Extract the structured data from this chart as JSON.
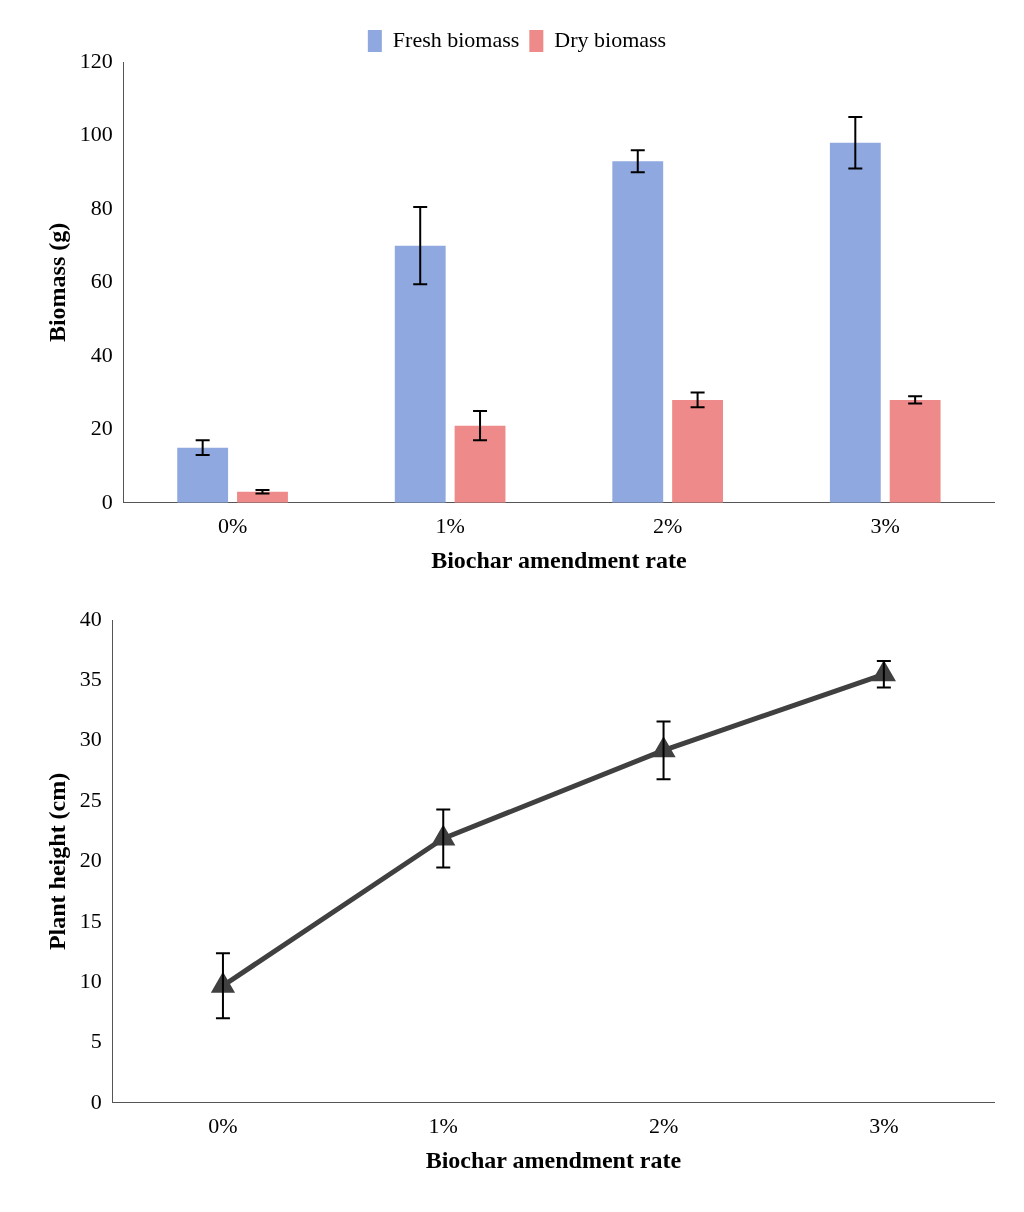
{
  "chart_data": [
    {
      "type": "bar",
      "categories": [
        "0%",
        "1%",
        "2%",
        "3%"
      ],
      "xlabel": "Biochar amendment rate",
      "ylabel": "Biomass (g)",
      "ylim": [
        0,
        120
      ],
      "yticks": [
        0,
        20,
        40,
        60,
        80,
        100,
        120
      ],
      "legend": "top",
      "series": [
        {
          "name": "Fresh biomass",
          "color": "#8fa8e0",
          "values": [
            15,
            70,
            93,
            98
          ],
          "errors": [
            2,
            10.5,
            3,
            7
          ]
        },
        {
          "name": "Dry biomass",
          "color": "#ee8a8a",
          "values": [
            3,
            21,
            28,
            28
          ],
          "errors": [
            0.5,
            4,
            2,
            1
          ]
        }
      ]
    },
    {
      "type": "line",
      "categories": [
        "0%",
        "1%",
        "2%",
        "3%"
      ],
      "xlabel": "Biochar amendment rate",
      "ylabel": "Plant height (cm)",
      "ylim": [
        0,
        40
      ],
      "yticks": [
        0,
        5,
        10,
        15,
        20,
        25,
        30,
        35,
        40
      ],
      "marker": "triangle",
      "line_style": "solid",
      "series": [
        {
          "color": "#404040",
          "values": [
            9.7,
            21.9,
            29.2,
            35.5
          ],
          "errors": [
            2.7,
            2.4,
            2.4,
            1.1
          ]
        }
      ]
    }
  ]
}
